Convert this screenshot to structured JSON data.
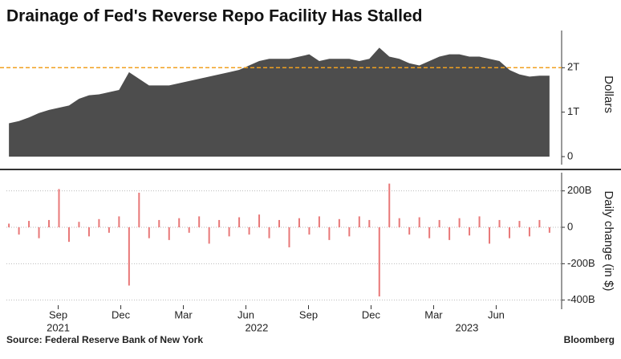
{
  "chart_data": [
    {
      "type": "area",
      "title": "Drainage of Fed's Reverse Repo Facility Has Stalled",
      "source": "Source: Federal Reserve Bank of New York",
      "credit": "Bloomberg",
      "y_label": "Dollars",
      "color": "#4d4d4d",
      "reference_line": {
        "value": 2,
        "color": "#f0a020"
      },
      "x": [
        2021.47,
        2021.51,
        2021.55,
        2021.59,
        2021.63,
        2021.67,
        2021.71,
        2021.75,
        2021.79,
        2021.83,
        2021.87,
        2021.91,
        2021.95,
        2021.99,
        2022.03,
        2022.07,
        2022.11,
        2022.15,
        2022.19,
        2022.23,
        2022.27,
        2022.31,
        2022.35,
        2022.39,
        2022.43,
        2022.47,
        2022.51,
        2022.55,
        2022.59,
        2022.63,
        2022.67,
        2022.71,
        2022.75,
        2022.79,
        2022.83,
        2022.87,
        2022.91,
        2022.95,
        2022.99,
        2023.03,
        2023.07,
        2023.11,
        2023.15,
        2023.19,
        2023.23,
        2023.27,
        2023.31,
        2023.35,
        2023.39,
        2023.43,
        2023.47,
        2023.51,
        2023.55,
        2023.59,
        2023.63
      ],
      "values": [
        0.75,
        0.8,
        0.88,
        0.98,
        1.05,
        1.1,
        1.15,
        1.3,
        1.38,
        1.4,
        1.45,
        1.5,
        1.9,
        1.75,
        1.6,
        1.6,
        1.6,
        1.65,
        1.7,
        1.75,
        1.8,
        1.85,
        1.9,
        1.95,
        2.05,
        2.15,
        2.2,
        2.2,
        2.2,
        2.25,
        2.3,
        2.15,
        2.2,
        2.2,
        2.2,
        2.15,
        2.2,
        2.45,
        2.25,
        2.2,
        2.1,
        2.05,
        2.15,
        2.25,
        2.3,
        2.3,
        2.25,
        2.25,
        2.2,
        2.15,
        1.95,
        1.85,
        1.8,
        1.82,
        1.82
      ],
      "xlim": [
        2021.46,
        2023.64
      ],
      "ylim": [
        0,
        2.8
      ],
      "yticks": [
        0,
        {
          "value": 1,
          "label": "1T"
        },
        {
          "value": 2,
          "label": "2T"
        }
      ]
    },
    {
      "type": "bar",
      "y_label": "Daily change (in $)",
      "color": "#e87878",
      "x": [
        2021.47,
        2021.51,
        2021.55,
        2021.59,
        2021.63,
        2021.67,
        2021.71,
        2021.75,
        2021.79,
        2021.83,
        2021.87,
        2021.91,
        2021.95,
        2021.99,
        2022.03,
        2022.07,
        2022.11,
        2022.15,
        2022.19,
        2022.23,
        2022.27,
        2022.31,
        2022.35,
        2022.39,
        2022.43,
        2022.47,
        2022.51,
        2022.55,
        2022.59,
        2022.63,
        2022.67,
        2022.71,
        2022.75,
        2022.79,
        2022.83,
        2022.87,
        2022.91,
        2022.95,
        2022.99,
        2023.03,
        2023.07,
        2023.11,
        2023.15,
        2023.19,
        2023.23,
        2023.27,
        2023.31,
        2023.35,
        2023.39,
        2023.43,
        2023.47,
        2023.51,
        2023.55,
        2023.59,
        2023.63
      ],
      "values": [
        20,
        -40,
        35,
        -60,
        40,
        210,
        -80,
        30,
        -50,
        45,
        -30,
        60,
        -320,
        190,
        -60,
        40,
        -70,
        50,
        -30,
        60,
        -90,
        40,
        -50,
        55,
        -40,
        70,
        -60,
        40,
        -110,
        50,
        -40,
        60,
        -70,
        45,
        -50,
        60,
        40,
        -380,
        240,
        50,
        -40,
        55,
        -60,
        40,
        -70,
        50,
        -45,
        60,
        -90,
        40,
        -60,
        35,
        -50,
        40,
        -30
      ],
      "xlim": [
        2021.46,
        2023.64
      ],
      "ylim": [
        -450,
        300
      ],
      "grid": true,
      "yticks": [
        {
          "value": 200,
          "label": "200B"
        },
        0,
        {
          "value": -200,
          "label": "-200B"
        },
        {
          "value": -400,
          "label": "-400B"
        }
      ],
      "xticks": [
        {
          "value": 2021.667,
          "label": "Sep"
        },
        {
          "value": 2021.917,
          "label": "Dec"
        },
        {
          "value": 2022.167,
          "label": "Mar"
        },
        {
          "value": 2022.417,
          "label": "Jun"
        },
        {
          "value": 2022.667,
          "label": "Sep"
        },
        {
          "value": 2022.917,
          "label": "Dec"
        },
        {
          "value": 2023.167,
          "label": "Mar"
        },
        {
          "value": 2023.417,
          "label": "Jun"
        }
      ],
      "year_labels": [
        {
          "value": 2021.667,
          "label": "2021"
        },
        {
          "value": 2022.46,
          "label": "2022"
        },
        {
          "value": 2023.3,
          "label": "2023"
        }
      ]
    }
  ]
}
